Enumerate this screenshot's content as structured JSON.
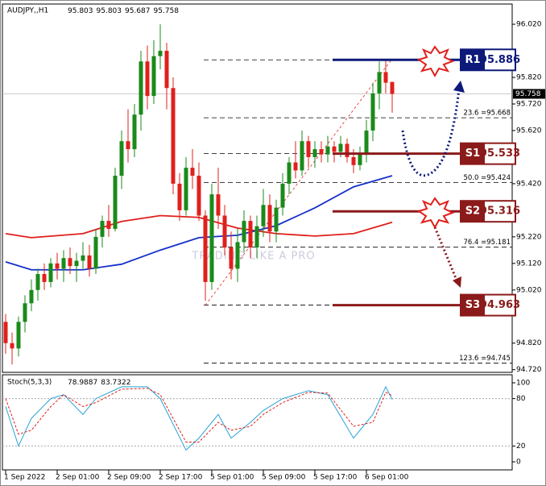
{
  "chart_data": {
    "type": "candlestick",
    "symbol": "AUDJPY,,H1",
    "categories": [
      "1 Sep 2022",
      null,
      null,
      null,
      null,
      null,
      null,
      null,
      "2 Sep 01:00",
      null,
      null,
      null,
      null,
      null,
      null,
      null,
      "2 Sep 09:00",
      null,
      null,
      null,
      null,
      null,
      null,
      null,
      "2 Sep 17:00",
      null,
      null,
      null,
      null,
      null,
      null,
      null,
      "5 Sep 01:00",
      null,
      null,
      null,
      null,
      null,
      null,
      null,
      "5 Sep 09:00",
      null,
      null,
      null,
      null,
      null,
      null,
      null,
      "5 Sep 17:00",
      null,
      null,
      null,
      null,
      null,
      null,
      null,
      "6 Sep 01:00",
      null,
      null,
      null,
      null
    ],
    "open": [
      94.9,
      94.82,
      94.8,
      94.9,
      94.97,
      95.02,
      95.08,
      95.05,
      95.12,
      95.1,
      95.14,
      95.11,
      95.13,
      95.15,
      95.1,
      95.22,
      95.28,
      95.25,
      95.45,
      95.58,
      95.55,
      95.68,
      95.88,
      95.75,
      95.9,
      95.92,
      95.78,
      95.42,
      95.32,
      95.48,
      95.45,
      95.3,
      95.05,
      95.38,
      95.3,
      95.18,
      95.1,
      95.2,
      95.28,
      95.18,
      95.26,
      95.34,
      95.24,
      95.33,
      95.42,
      95.5,
      95.47,
      95.58,
      95.52,
      95.55,
      95.53,
      95.56,
      95.54,
      95.57,
      95.52,
      95.49,
      95.53,
      95.62,
      95.76,
      95.84,
      95.803
    ],
    "high": [
      94.93,
      94.86,
      94.92,
      95.0,
      95.06,
      95.1,
      95.12,
      95.14,
      95.16,
      95.17,
      95.18,
      95.16,
      95.2,
      95.19,
      95.25,
      95.3,
      95.34,
      95.48,
      95.62,
      95.7,
      95.72,
      95.92,
      95.94,
      95.96,
      96.02,
      95.95,
      95.82,
      95.46,
      95.52,
      95.55,
      95.5,
      95.32,
      95.42,
      95.48,
      95.34,
      95.24,
      95.25,
      95.32,
      95.3,
      95.3,
      95.4,
      95.38,
      95.36,
      95.46,
      95.52,
      95.58,
      95.62,
      95.6,
      95.58,
      95.58,
      95.6,
      95.58,
      95.6,
      95.59,
      95.55,
      95.56,
      95.66,
      95.8,
      95.88,
      95.89,
      95.803
    ],
    "low": [
      94.78,
      94.74,
      94.77,
      94.86,
      94.94,
      94.98,
      95.02,
      95.03,
      95.06,
      95.05,
      95.08,
      95.05,
      95.1,
      95.07,
      95.08,
      95.18,
      95.22,
      95.24,
      95.4,
      95.5,
      95.52,
      95.62,
      95.7,
      95.72,
      95.85,
      95.7,
      95.38,
      95.28,
      95.3,
      95.4,
      95.28,
      94.98,
      95.02,
      95.25,
      95.15,
      95.06,
      95.05,
      95.16,
      95.14,
      95.14,
      95.22,
      95.2,
      95.2,
      95.3,
      95.38,
      95.44,
      95.45,
      95.48,
      95.48,
      95.5,
      95.5,
      95.5,
      95.52,
      95.5,
      95.46,
      95.47,
      95.5,
      95.58,
      95.7,
      95.76,
      95.687
    ],
    "close": [
      94.82,
      94.8,
      94.9,
      94.97,
      95.02,
      95.08,
      95.05,
      95.12,
      95.1,
      95.14,
      95.11,
      95.13,
      95.15,
      95.1,
      95.22,
      95.28,
      95.25,
      95.45,
      95.58,
      95.55,
      95.68,
      95.88,
      95.75,
      95.9,
      95.92,
      95.78,
      95.42,
      95.32,
      95.48,
      95.45,
      95.3,
      95.05,
      95.38,
      95.3,
      95.18,
      95.1,
      95.2,
      95.28,
      95.18,
      95.26,
      95.34,
      95.24,
      95.33,
      95.42,
      95.5,
      95.47,
      95.58,
      95.52,
      95.55,
      95.53,
      95.56,
      95.54,
      95.57,
      95.52,
      95.49,
      95.53,
      95.62,
      95.76,
      95.84,
      95.8,
      95.758
    ],
    "up_color": "#1a8a1a",
    "down_color": "#e0201c",
    "ylim": [
      94.71,
      96.087
    ],
    "yticks": [
      {
        "value": 96.02,
        "label": "96.020"
      },
      {
        "value": 95.82,
        "label": "95.820"
      },
      {
        "value": 95.72,
        "label": "95.720"
      },
      {
        "value": 95.62,
        "label": "95.620"
      },
      {
        "value": 95.42,
        "label": "95.420"
      },
      {
        "value": 95.22,
        "label": "95.220"
      },
      {
        "value": 95.12,
        "label": "95.120"
      },
      {
        "value": 95.02,
        "label": "95.020"
      },
      {
        "value": 94.82,
        "label": "94.820"
      },
      {
        "value": 94.72,
        "label": "94.720"
      }
    ],
    "moving_averages": [
      {
        "color": "#e0201c",
        "x": [
          0,
          4,
          12,
          18,
          24,
          30,
          36,
          42,
          48,
          54,
          60
        ],
        "values": [
          95.232,
          95.217,
          95.232,
          95.278,
          95.3,
          95.293,
          95.253,
          95.232,
          95.223,
          95.232,
          95.275
        ]
      },
      {
        "color": "#1530c8",
        "x": [
          0,
          4,
          12,
          18,
          24,
          30,
          36,
          42,
          48,
          54,
          60
        ],
        "values": [
          95.126,
          95.096,
          95.096,
          95.117,
          95.17,
          95.217,
          95.226,
          95.262,
          95.329,
          95.408,
          95.45
        ]
      }
    ],
    "fib_levels": [
      {
        "value": 95.886,
        "label": null
      },
      {
        "value": 95.668,
        "label": "23.6 =95.668"
      },
      {
        "value": 95.533,
        "label": null
      },
      {
        "value": 95.424,
        "label": "50.0 =95.424"
      },
      {
        "value": 95.181,
        "label": "76.4 =95.181"
      },
      {
        "value": 94.963,
        "label": null
      },
      {
        "value": 94.745,
        "label": "123.6 =94.745"
      }
    ],
    "levels": [
      {
        "name": "R1",
        "value": 95.886,
        "color": "#0d1a7a"
      },
      {
        "name": "S1",
        "value": 95.533,
        "color": "#8b1a1a"
      },
      {
        "name": "S2",
        "value": 95.316,
        "color": "#8b1a1a"
      },
      {
        "name": "S3",
        "value": 94.963,
        "color": "#8b1a1a"
      }
    ],
    "watermark": "TRADING LIKE A PRO",
    "stochastic": {
      "title": "Stoch(5,3,3)",
      "ylim": [
        0,
        100
      ],
      "yticks": [
        100,
        80,
        20,
        0
      ],
      "series": [
        {
          "color": "#29a3d8",
          "x": [
            0,
            2,
            4,
            7,
            9,
            12,
            14,
            18,
            22,
            24,
            28,
            30,
            33,
            35,
            38,
            40,
            43,
            47,
            50,
            54,
            57,
            59,
            60
          ],
          "values": [
            70,
            20,
            55,
            80,
            85,
            60,
            80,
            95,
            95,
            80,
            15,
            30,
            60,
            30,
            50,
            65,
            80,
            90,
            85,
            30,
            60,
            95,
            78.9887
          ]
        },
        {
          "color": "#e0201c",
          "dash": true,
          "x": [
            0,
            2,
            4,
            7,
            9,
            12,
            14,
            18,
            22,
            24,
            28,
            30,
            33,
            35,
            38,
            40,
            43,
            47,
            50,
            54,
            57,
            59,
            60
          ],
          "values": [
            80,
            35,
            40,
            70,
            85,
            70,
            75,
            92,
            93,
            85,
            25,
            25,
            50,
            40,
            45,
            60,
            75,
            88,
            87,
            45,
            50,
            88,
            83.7322
          ]
        }
      ]
    }
  }
}
